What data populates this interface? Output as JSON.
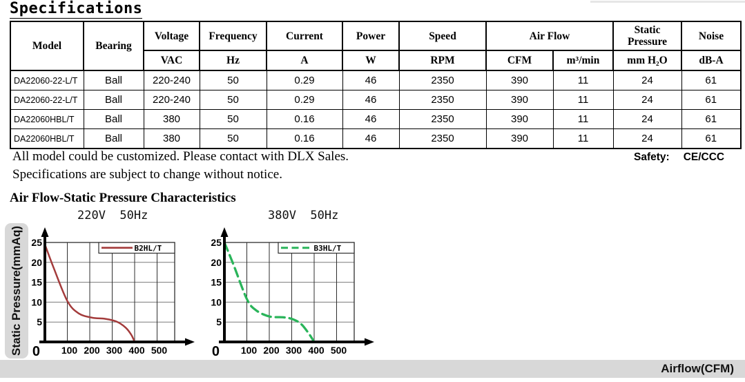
{
  "page": {
    "title": "Specifications"
  },
  "table": {
    "header": {
      "model": "Model",
      "bearing": "Bearing",
      "groups": [
        {
          "label": "Voltage",
          "unit": "VAC"
        },
        {
          "label": "Frequency",
          "unit": "Hz"
        },
        {
          "label": "Current",
          "unit": "A"
        },
        {
          "label": "Power",
          "unit": "W"
        },
        {
          "label": "Speed",
          "unit": "RPM"
        }
      ],
      "air_flow": {
        "label": "Air Flow",
        "unit_cfm": "CFM",
        "unit_m3": "m³/min"
      },
      "static_pressure": {
        "label": "Static Pressure",
        "unit": "mm H₂O"
      },
      "noise": {
        "label": "Noise",
        "unit": "dB-A"
      }
    },
    "rows": [
      [
        "DA22060-22-L/T",
        "Ball",
        "220-240",
        "50",
        "0.29",
        "46",
        "2350",
        "390",
        "11",
        "24",
        "61"
      ],
      [
        "DA22060-22-L/T",
        "Ball",
        "220-240",
        "50",
        "0.29",
        "46",
        "2350",
        "390",
        "11",
        "24",
        "61"
      ],
      [
        "DA22060HBL/T",
        "Ball",
        "380",
        "50",
        "0.16",
        "46",
        "2350",
        "390",
        "11",
        "24",
        "61"
      ],
      [
        "DA22060HBL/T",
        "Ball",
        "380",
        "50",
        "0.16",
        "46",
        "2350",
        "390",
        "11",
        "24",
        "61"
      ]
    ]
  },
  "notes": {
    "line1": "All model could be customized. Please contact with DLX Sales.",
    "line2": "Specifications are subject to change without notice.",
    "safety_label": "Safety:",
    "safety_value": "CE/CCC"
  },
  "section": {
    "title": "Air Flow-Static Pressure Characteristics"
  },
  "axes_labels": {
    "y": "Static Pressure(mmAq)",
    "x": "Airflow(CFM)"
  },
  "chart_data": [
    {
      "type": "line",
      "title": "220V  50Hz",
      "xlabel": "Airflow(CFM)",
      "ylabel": "Static Pressure(mmAq)",
      "xlim": [
        0,
        500
      ],
      "ylim": [
        0,
        25
      ],
      "xticks": [
        0,
        100,
        200,
        300,
        400,
        500
      ],
      "yticks": [
        0,
        5,
        10,
        15,
        20,
        25
      ],
      "grid": true,
      "legend_position": "top-right",
      "series": [
        {
          "name": "B2HL/T",
          "color": "#a33b3b",
          "dashed": false,
          "points": [
            [
              0,
              24.5
            ],
            [
              40,
              18.5
            ],
            [
              100,
              10.3
            ],
            [
              150,
              7.2
            ],
            [
              210,
              6.1
            ],
            [
              270,
              5.8
            ],
            [
              320,
              5.1
            ],
            [
              360,
              3.6
            ],
            [
              385,
              1.8
            ],
            [
              400,
              0
            ]
          ]
        }
      ]
    },
    {
      "type": "line",
      "title": "380V  50Hz",
      "xlabel": "Airflow(CFM)",
      "ylabel": "Static Pressure(mmAq)",
      "xlim": [
        0,
        500
      ],
      "ylim": [
        0,
        25
      ],
      "xticks": [
        0,
        100,
        200,
        300,
        400,
        500
      ],
      "yticks": [
        0,
        5,
        10,
        15,
        20,
        25
      ],
      "grid": true,
      "legend_position": "top-right",
      "series": [
        {
          "name": "B3HL/T",
          "color": "#2ab45a",
          "dashed": true,
          "points": [
            [
              0,
              25
            ],
            [
              40,
              19.5
            ],
            [
              100,
              10.8
            ],
            [
              140,
              8.0
            ],
            [
              200,
              6.4
            ],
            [
              260,
              6.2
            ],
            [
              300,
              5.8
            ],
            [
              340,
              4.6
            ],
            [
              375,
              2.2
            ],
            [
              400,
              0
            ]
          ]
        }
      ]
    }
  ]
}
